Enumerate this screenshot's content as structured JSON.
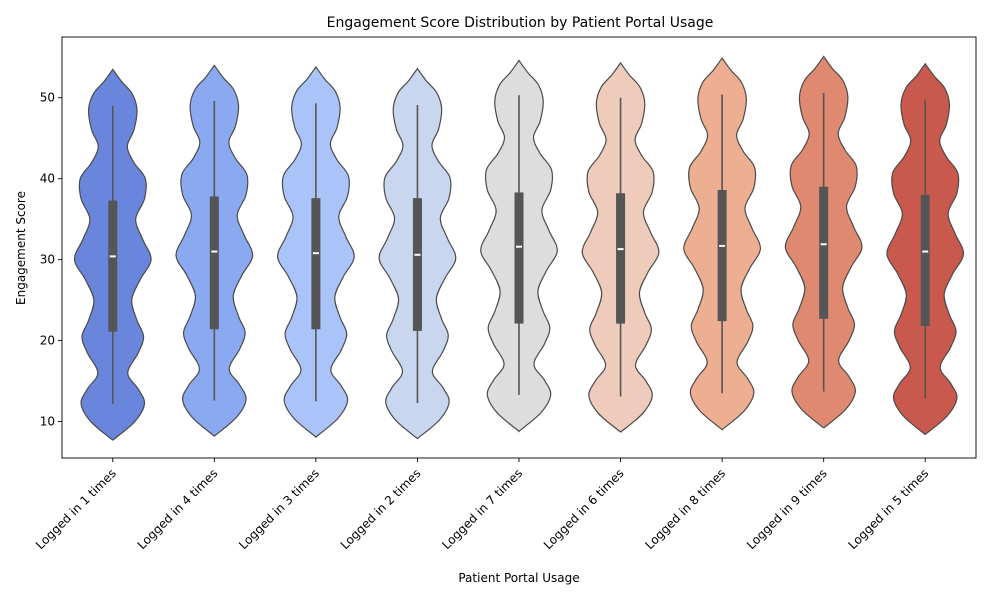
{
  "chart_data": {
    "type": "violin",
    "title": "Engagement Score Distribution by Patient Portal Usage",
    "xlabel": "Patient Portal Usage",
    "ylabel": "Engagement Score",
    "ylim": [
      5.5,
      57.5
    ],
    "yticks": [
      10,
      20,
      30,
      40,
      50
    ],
    "grid": false,
    "categories": [
      "Logged in 1 times",
      "Logged in 4 times",
      "Logged in 3 times",
      "Logged in 2 times",
      "Logged in 7 times",
      "Logged in 6 times",
      "Logged in 8 times",
      "Logged in 9 times",
      "Logged in 5 times"
    ],
    "colors": [
      "#6a85dc",
      "#8aa9f0",
      "#aac3f8",
      "#c9d6ef",
      "#dddddd",
      "#efcbbb",
      "#eeae92",
      "#df8a70",
      "#c9594c"
    ],
    "density_levels": [
      7.7,
      10,
      12.2,
      14,
      16,
      18.5,
      20.5,
      22.5,
      25,
      27.5,
      30,
      32.5,
      35,
      37.5,
      40,
      42,
      44,
      46,
      48.5,
      50.5,
      52,
      53.5
    ],
    "density_widths": [
      0.0,
      0.5,
      0.72,
      0.58,
      0.34,
      0.58,
      0.7,
      0.55,
      0.43,
      0.62,
      0.87,
      0.68,
      0.52,
      0.72,
      0.74,
      0.48,
      0.33,
      0.48,
      0.55,
      0.44,
      0.2,
      0.0
    ],
    "violins": [
      {
        "min": 12.2,
        "q1": 21.1,
        "median": 30.4,
        "q3": 37.3,
        "max": 49.0,
        "lo": 7.7,
        "hi": 53.5
      },
      {
        "min": 12.6,
        "q1": 21.4,
        "median": 31.0,
        "q3": 37.8,
        "max": 49.6,
        "lo": 8.2,
        "hi": 54.0
      },
      {
        "min": 12.5,
        "q1": 21.4,
        "median": 30.8,
        "q3": 37.6,
        "max": 49.3,
        "lo": 8.1,
        "hi": 53.8
      },
      {
        "min": 12.3,
        "q1": 21.2,
        "median": 30.6,
        "q3": 37.6,
        "max": 49.1,
        "lo": 7.9,
        "hi": 53.6
      },
      {
        "min": 13.3,
        "q1": 22.1,
        "median": 31.6,
        "q3": 38.3,
        "max": 50.3,
        "lo": 8.8,
        "hi": 54.6
      },
      {
        "min": 13.1,
        "q1": 22.1,
        "median": 31.3,
        "q3": 38.2,
        "max": 50.0,
        "lo": 8.7,
        "hi": 54.3
      },
      {
        "min": 13.5,
        "q1": 22.4,
        "median": 31.7,
        "q3": 38.6,
        "max": 50.4,
        "lo": 9.0,
        "hi": 54.9
      },
      {
        "min": 13.7,
        "q1": 22.7,
        "median": 31.9,
        "q3": 39.0,
        "max": 50.6,
        "lo": 9.2,
        "hi": 55.1
      },
      {
        "min": 12.8,
        "q1": 21.8,
        "median": 31.0,
        "q3": 38.0,
        "max": 49.8,
        "lo": 8.4,
        "hi": 54.2
      }
    ]
  }
}
